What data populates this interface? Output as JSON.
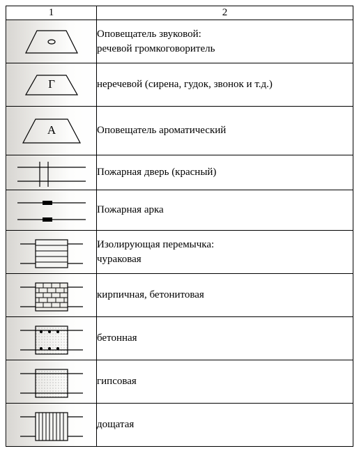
{
  "header": {
    "col1": "1",
    "col2": "2"
  },
  "rows": [
    {
      "id": "trap-dot",
      "desc": "Оповещатель звуковой:\nречевой громкоговоритель"
    },
    {
      "id": "trap-g",
      "desc": "неречевой (сирена, гудок, звонок и т.д.)",
      "letter": "Г"
    },
    {
      "id": "trap-a",
      "desc": "Оповещатель ароматический",
      "letter": "А"
    },
    {
      "id": "fire-door",
      "desc": "Пожарная дверь (красный)"
    },
    {
      "id": "fire-arch",
      "desc": "Пожарная арка"
    },
    {
      "id": "iso-churak",
      "desc": "Изолирующая перемычка:\nчураковая"
    },
    {
      "id": "iso-brick",
      "desc": "кирпичная, бетонитовая"
    },
    {
      "id": "iso-concrete",
      "desc": "бетонная"
    },
    {
      "id": "iso-gypsum",
      "desc": "гипсовая"
    },
    {
      "id": "iso-board",
      "desc": "дощатая"
    }
  ],
  "style": {
    "stroke": "#000000",
    "stroke_width": 1.2,
    "fill": "none",
    "symbol_svg_w": 110,
    "symbol_svg_h": 56,
    "desc_fontsize": 15,
    "bg_gradient_from": "#d8d6d2",
    "bg_gradient_to": "#ffffff"
  }
}
